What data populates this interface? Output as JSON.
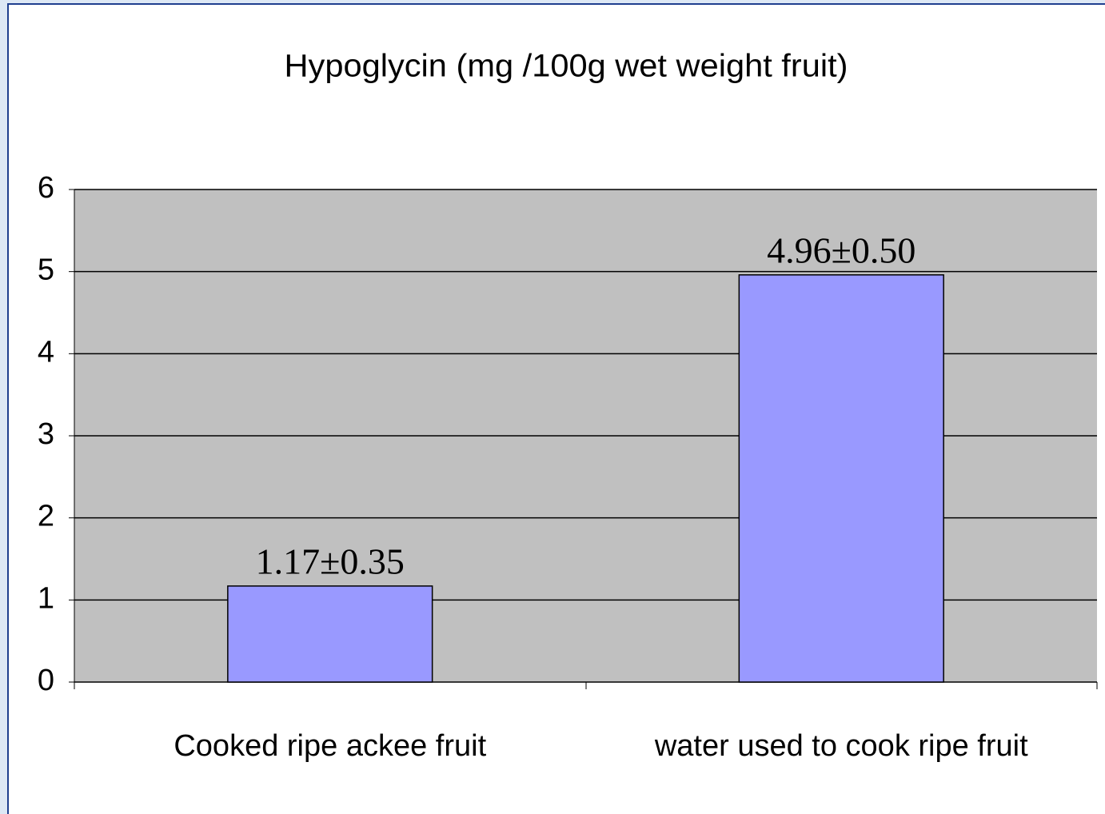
{
  "chart_data": {
    "type": "bar",
    "title": "Hypoglycin (mg /100g wet weight fruit)",
    "categories": [
      "Cooked ripe ackee fruit",
      "water used to cook ripe fruit"
    ],
    "values": [
      1.17,
      4.96
    ],
    "value_labels": [
      "1.17±0.35",
      "4.96±0.50"
    ],
    "color": "#9999ff",
    "ylim": [
      0,
      6
    ],
    "yticks": [
      0,
      1,
      2,
      3,
      4,
      5,
      6
    ],
    "grid": true
  }
}
